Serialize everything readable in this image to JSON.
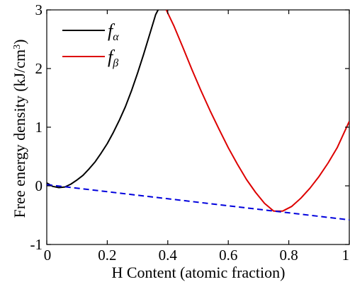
{
  "chart_data": {
    "type": "line",
    "xlabel": "H Content (atomic fraction)",
    "ylabel": "Free energy density (kJ/cm",
    "ylabel_sup": "3",
    "ylabel_end": ")",
    "xlim": [
      0,
      1
    ],
    "ylim": [
      -1,
      3
    ],
    "x_ticks": [
      0,
      0.2,
      0.4,
      0.6,
      0.8,
      1
    ],
    "x_tick_labels": [
      "0",
      "0.2",
      "0.4",
      "0.6",
      "0.8",
      "1"
    ],
    "y_ticks": [
      -1,
      0,
      1,
      2,
      3
    ],
    "y_tick_labels": [
      "-1",
      "0",
      "1",
      "2",
      "3"
    ],
    "grid": false,
    "legend_position": "top-left",
    "series": [
      {
        "name": "f",
        "name_sub": "α",
        "color": "#000000",
        "style": "solid",
        "x": [
          0,
          0.02,
          0.04,
          0.06,
          0.08,
          0.1,
          0.12,
          0.14,
          0.16,
          0.18,
          0.2,
          0.22,
          0.24,
          0.26,
          0.28,
          0.3,
          0.32,
          0.34,
          0.36,
          0.368
        ],
        "y": [
          0.05,
          -0.01,
          -0.03,
          -0.02,
          0.03,
          0.1,
          0.18,
          0.29,
          0.41,
          0.56,
          0.72,
          0.91,
          1.12,
          1.35,
          1.62,
          1.92,
          2.24,
          2.58,
          2.92,
          3.0
        ]
      },
      {
        "name": "f",
        "name_sub": "β",
        "color": "#dd0000",
        "style": "solid",
        "x": [
          0.395,
          0.42,
          0.45,
          0.48,
          0.51,
          0.54,
          0.57,
          0.6,
          0.63,
          0.66,
          0.69,
          0.72,
          0.75,
          0.78,
          0.81,
          0.84,
          0.87,
          0.9,
          0.93,
          0.96,
          1.0
        ],
        "y": [
          3.0,
          2.73,
          2.36,
          1.98,
          1.62,
          1.28,
          0.96,
          0.65,
          0.37,
          0.11,
          -0.11,
          -0.3,
          -0.43,
          -0.43,
          -0.35,
          -0.21,
          -0.04,
          0.16,
          0.39,
          0.65,
          1.1
        ]
      },
      {
        "color": "#0000dd",
        "style": "dashed",
        "x": [
          0,
          1
        ],
        "y": [
          0.02,
          -0.58
        ]
      }
    ]
  }
}
